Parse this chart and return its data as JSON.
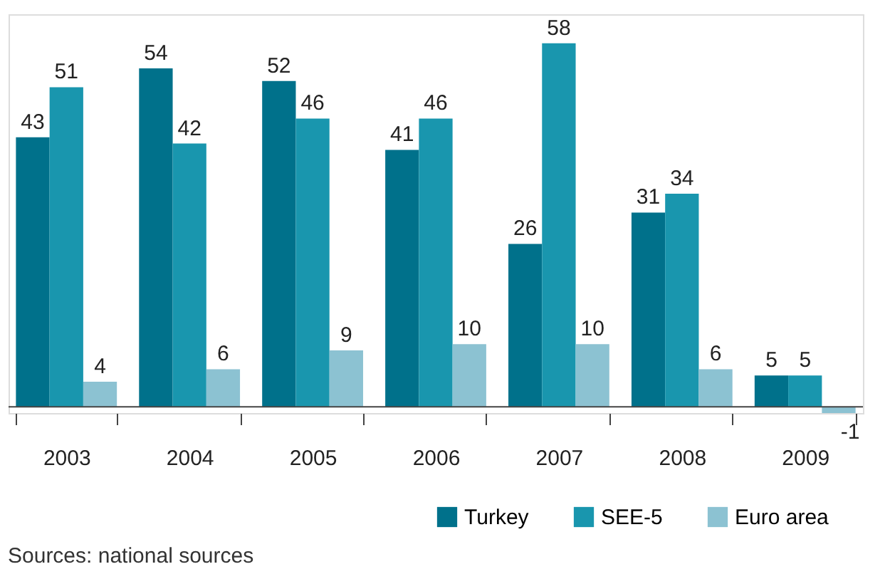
{
  "chart_data": {
    "type": "bar",
    "categories": [
      "2003",
      "2004",
      "2005",
      "2006",
      "2007",
      "2008",
      "2009"
    ],
    "series": [
      {
        "name": "Turkey",
        "color": "#00718b",
        "values": [
          43,
          54,
          52,
          41,
          26,
          31,
          5
        ]
      },
      {
        "name": "SEE-5",
        "color": "#1996ae",
        "values": [
          51,
          42,
          46,
          46,
          58,
          34,
          5
        ]
      },
      {
        "name": "Euro area",
        "color": "#8cc2d2",
        "values": [
          4,
          6,
          9,
          10,
          10,
          6,
          -1
        ]
      }
    ],
    "data_labels": true,
    "grid": false,
    "legend": "bottom",
    "tick_labels": "x",
    "annotations": [
      "Sources: national sources"
    ]
  }
}
